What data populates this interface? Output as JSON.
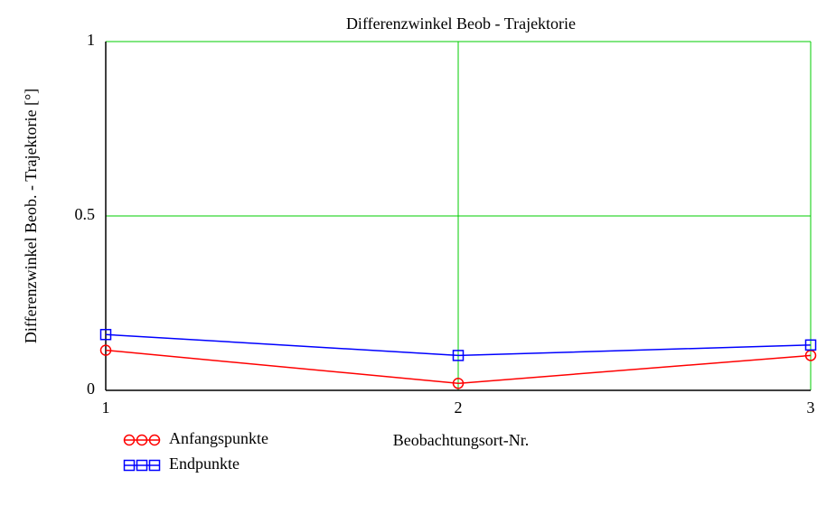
{
  "chart_data": {
    "type": "line",
    "title": "Differenzwinkel Beob - Trajektorie",
    "x_label": "Beobachtungsort-Nr.",
    "y_label": "Differenzwinkel Beob. - Trajektorie [°]",
    "x": [
      1,
      2,
      3
    ],
    "series": [
      {
        "name": "Anfangspunkte",
        "color": "#ff0000",
        "marker": "circle",
        "values": [
          0.115,
          0.02,
          0.1
        ]
      },
      {
        "name": "Endpunkte",
        "color": "#0000ff",
        "marker": "square",
        "values": [
          0.16,
          0.1,
          0.13
        ]
      }
    ],
    "xlim": [
      1,
      3
    ],
    "xticks": [
      1,
      2,
      3
    ],
    "ylim": [
      0,
      1
    ],
    "yticks": [
      0,
      0.5,
      1
    ],
    "grid": true,
    "grid_color": "#00cc00"
  }
}
